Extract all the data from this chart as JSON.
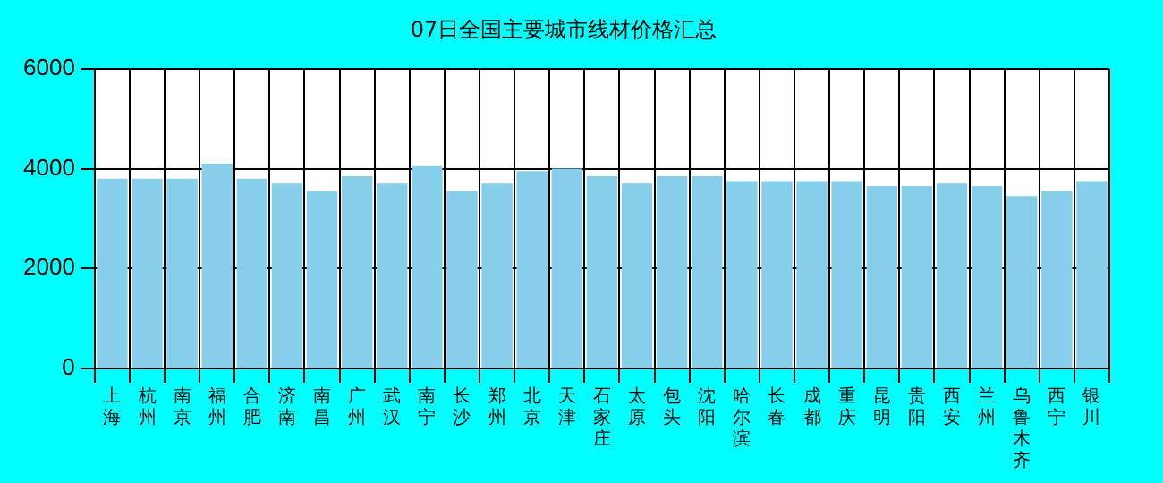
{
  "chart_data": {
    "type": "bar",
    "title": "07日全国主要城市线材价格汇总",
    "categories": [
      "上海",
      "杭州",
      "南京",
      "福州",
      "合肥",
      "济南",
      "南昌",
      "广州",
      "武汉",
      "南宁",
      "长沙",
      "郑州",
      "北京",
      "天津",
      "石家庄",
      "太原",
      "包头",
      "沈阳",
      "哈尔滨",
      "长春",
      "成都",
      "重庆",
      "昆明",
      "贵阳",
      "西安",
      "兰州",
      "乌鲁木齐",
      "西宁",
      "银川"
    ],
    "values": [
      3800,
      3800,
      3800,
      4100,
      3800,
      3700,
      3550,
      3850,
      3700,
      4050,
      3550,
      3700,
      3950,
      4000,
      3850,
      3700,
      3850,
      3850,
      3750,
      3750,
      3750,
      3750,
      3650,
      3650,
      3700,
      3650,
      3450,
      3550,
      3750
    ],
    "color": "#87ceeb",
    "ylim": [
      0,
      6000
    ],
    "yticks": [
      0,
      2000,
      4000,
      6000
    ],
    "grid": true
  }
}
